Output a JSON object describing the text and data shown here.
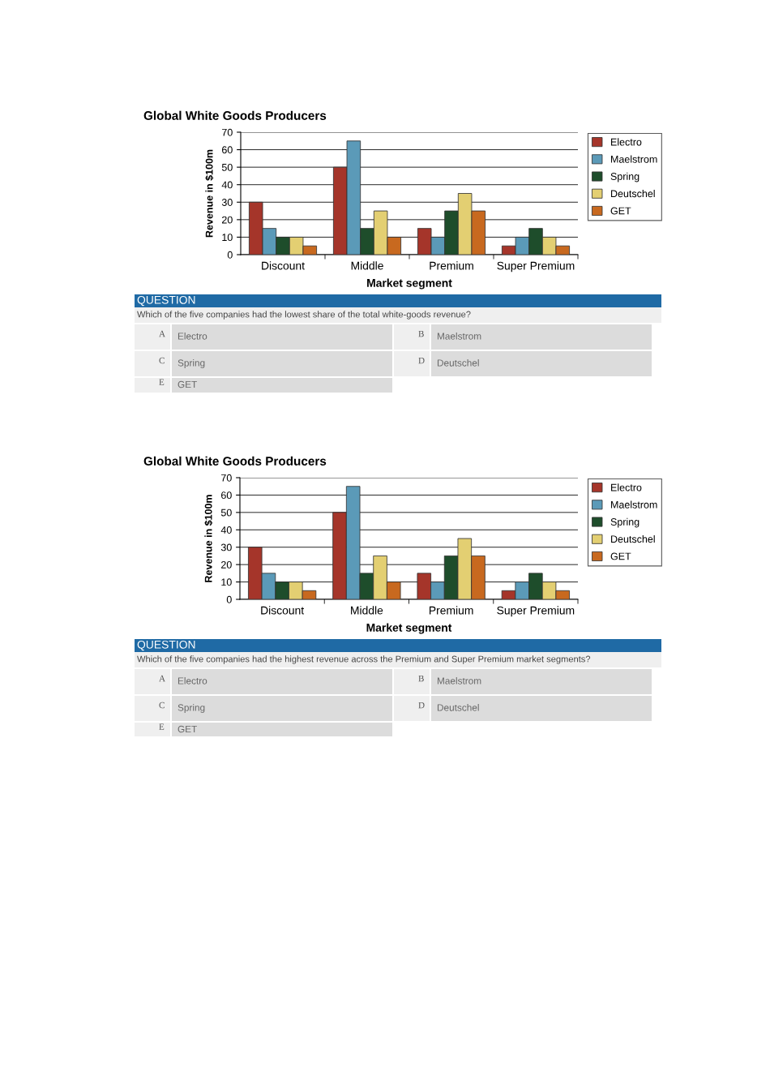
{
  "chart_data": [
    {
      "type": "bar",
      "title": "Global White Goods Producers",
      "xlabel": "Market segment",
      "ylabel": "Revenue in $100m",
      "categories": [
        "Discount",
        "Middle",
        "Premium",
        "Super Premium"
      ],
      "series": [
        {
          "name": "Electro",
          "color": "#a5352a",
          "values": [
            30,
            50,
            15,
            5
          ]
        },
        {
          "name": "Maelstrom",
          "color": "#5b9ab8",
          "values": [
            15,
            65,
            10,
            10
          ]
        },
        {
          "name": "Spring",
          "color": "#1e4d2b",
          "values": [
            10,
            15,
            25,
            15
          ]
        },
        {
          "name": "Deutschel",
          "color": "#e3cf72",
          "values": [
            10,
            25,
            35,
            10
          ]
        },
        {
          "name": "GET",
          "color": "#c8691f",
          "values": [
            5,
            10,
            25,
            5
          ]
        }
      ],
      "ylim": [
        0,
        70
      ],
      "yticks": [
        0,
        10,
        20,
        30,
        40,
        50,
        60,
        70
      ],
      "grid": "y",
      "legend": "right"
    },
    {
      "type": "other",
      "title": "QUESTION",
      "subtitle": "Which of the five companies had the lowest share of the total white-goods revenue?",
      "annotations": [
        "A",
        "Electro",
        "B",
        "Maelstrom",
        "C",
        "Spring",
        "D",
        "Deutschel",
        "E",
        "GET"
      ]
    },
    {
      "type": "bar",
      "title": "Global White Goods Producers",
      "xlabel": "Market segment",
      "ylabel": "Revenue in $100m",
      "categories": [
        "Discount",
        "Middle",
        "Premium",
        "Super Premium"
      ],
      "series": [
        {
          "name": "Electro",
          "color": "#a5352a",
          "values": [
            30,
            50,
            15,
            5
          ]
        },
        {
          "name": "Maelstrom",
          "color": "#5b9ab8",
          "values": [
            15,
            65,
            10,
            10
          ]
        },
        {
          "name": "Spring",
          "color": "#1e4d2b",
          "values": [
            10,
            15,
            25,
            15
          ]
        },
        {
          "name": "Deutschel",
          "color": "#e3cf72",
          "values": [
            10,
            25,
            35,
            10
          ]
        },
        {
          "name": "GET",
          "color": "#c8691f",
          "values": [
            5,
            10,
            25,
            5
          ]
        }
      ],
      "ylim": [
        0,
        70
      ],
      "yticks": [
        0,
        10,
        20,
        30,
        40,
        50,
        60,
        70
      ],
      "grid": "y",
      "legend": "right"
    },
    {
      "type": "other",
      "title": "QUESTION",
      "subtitle": "Which of the five companies had the highest revenue across the Premium and Super Premium market segments?",
      "annotations": [
        "A",
        "Electro",
        "B",
        "Maelstrom",
        "C",
        "Spring",
        "D",
        "Deutschel",
        "E",
        "GET"
      ]
    }
  ]
}
